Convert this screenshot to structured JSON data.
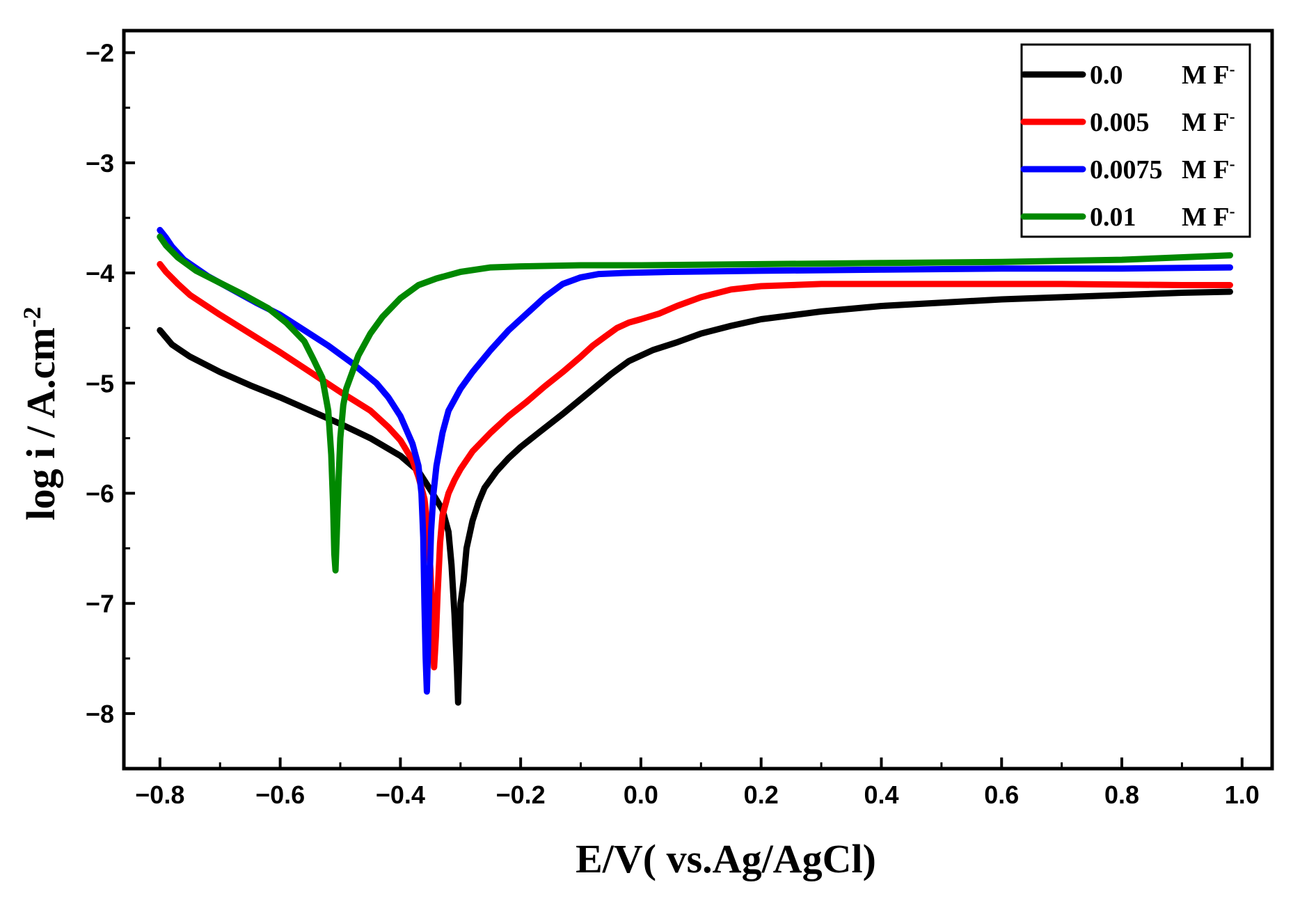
{
  "chart_data": {
    "type": "line",
    "title": "",
    "xlabel": "E/V( vs.Ag/AgCl)",
    "ylabel_main": "log i / A.cm",
    "ylabel_sup": "-2",
    "xlim": [
      -0.86,
      1.05
    ],
    "ylim": [
      -8.5,
      -1.8
    ],
    "xticks": [
      -0.8,
      -0.6,
      -0.4,
      -0.2,
      0.0,
      0.2,
      0.4,
      0.6,
      0.8,
      1.0
    ],
    "xtick_labels": [
      "−0.8",
      "−0.6",
      "−0.4",
      "−0.2",
      "0.0",
      "0.2",
      "0.4",
      "0.6",
      "0.8",
      "1.0"
    ],
    "yticks": [
      -2,
      -3,
      -4,
      -5,
      -6,
      -7,
      -8
    ],
    "ytick_labels": [
      "−2",
      "−3",
      "−4",
      "−5",
      "−6",
      "−7",
      "−8"
    ],
    "legend_position": "top-right",
    "series": [
      {
        "name": "0.0 M F-",
        "label_conc": "0.0",
        "label_unit": "M F",
        "label_sup": "-",
        "color": "#000000",
        "points": [
          [
            -0.8,
            -4.52
          ],
          [
            -0.78,
            -4.65
          ],
          [
            -0.75,
            -4.76
          ],
          [
            -0.7,
            -4.9
          ],
          [
            -0.65,
            -5.02
          ],
          [
            -0.6,
            -5.13
          ],
          [
            -0.55,
            -5.25
          ],
          [
            -0.5,
            -5.37
          ],
          [
            -0.45,
            -5.5
          ],
          [
            -0.4,
            -5.66
          ],
          [
            -0.37,
            -5.8
          ],
          [
            -0.35,
            -5.97
          ],
          [
            -0.33,
            -6.15
          ],
          [
            -0.32,
            -6.35
          ],
          [
            -0.315,
            -6.65
          ],
          [
            -0.31,
            -7.1
          ],
          [
            -0.306,
            -7.6
          ],
          [
            -0.304,
            -7.9
          ],
          [
            -0.302,
            -7.5
          ],
          [
            -0.3,
            -7.0
          ],
          [
            -0.295,
            -6.8
          ],
          [
            -0.29,
            -6.5
          ],
          [
            -0.28,
            -6.25
          ],
          [
            -0.27,
            -6.08
          ],
          [
            -0.26,
            -5.95
          ],
          [
            -0.24,
            -5.8
          ],
          [
            -0.22,
            -5.68
          ],
          [
            -0.2,
            -5.58
          ],
          [
            -0.17,
            -5.45
          ],
          [
            -0.13,
            -5.28
          ],
          [
            -0.09,
            -5.1
          ],
          [
            -0.05,
            -4.92
          ],
          [
            -0.02,
            -4.8
          ],
          [
            0.02,
            -4.7
          ],
          [
            0.06,
            -4.63
          ],
          [
            0.1,
            -4.55
          ],
          [
            0.15,
            -4.48
          ],
          [
            0.2,
            -4.42
          ],
          [
            0.3,
            -4.35
          ],
          [
            0.4,
            -4.3
          ],
          [
            0.5,
            -4.27
          ],
          [
            0.6,
            -4.24
          ],
          [
            0.7,
            -4.22
          ],
          [
            0.8,
            -4.2
          ],
          [
            0.9,
            -4.18
          ],
          [
            0.98,
            -4.17
          ]
        ]
      },
      {
        "name": "0.005 M F-",
        "label_conc": "0.005",
        "label_unit": "M F",
        "label_sup": "-",
        "color": "#ff0000",
        "points": [
          [
            -0.8,
            -3.92
          ],
          [
            -0.79,
            -3.99
          ],
          [
            -0.77,
            -4.1
          ],
          [
            -0.75,
            -4.2
          ],
          [
            -0.7,
            -4.38
          ],
          [
            -0.65,
            -4.55
          ],
          [
            -0.6,
            -4.72
          ],
          [
            -0.55,
            -4.9
          ],
          [
            -0.5,
            -5.08
          ],
          [
            -0.45,
            -5.25
          ],
          [
            -0.42,
            -5.4
          ],
          [
            -0.4,
            -5.52
          ],
          [
            -0.38,
            -5.7
          ],
          [
            -0.37,
            -5.85
          ],
          [
            -0.36,
            -6.05
          ],
          [
            -0.355,
            -6.3
          ],
          [
            -0.35,
            -6.7
          ],
          [
            -0.347,
            -7.15
          ],
          [
            -0.344,
            -7.58
          ],
          [
            -0.341,
            -7.3
          ],
          [
            -0.338,
            -6.9
          ],
          [
            -0.334,
            -6.45
          ],
          [
            -0.33,
            -6.2
          ],
          [
            -0.32,
            -6.0
          ],
          [
            -0.31,
            -5.88
          ],
          [
            -0.3,
            -5.78
          ],
          [
            -0.28,
            -5.62
          ],
          [
            -0.25,
            -5.45
          ],
          [
            -0.22,
            -5.3
          ],
          [
            -0.19,
            -5.17
          ],
          [
            -0.16,
            -5.03
          ],
          [
            -0.13,
            -4.9
          ],
          [
            -0.1,
            -4.76
          ],
          [
            -0.08,
            -4.66
          ],
          [
            -0.06,
            -4.58
          ],
          [
            -0.04,
            -4.5
          ],
          [
            -0.02,
            -4.45
          ],
          [
            0.0,
            -4.42
          ],
          [
            0.03,
            -4.37
          ],
          [
            0.06,
            -4.3
          ],
          [
            0.1,
            -4.22
          ],
          [
            0.15,
            -4.15
          ],
          [
            0.2,
            -4.12
          ],
          [
            0.3,
            -4.1
          ],
          [
            0.5,
            -4.1
          ],
          [
            0.7,
            -4.1
          ],
          [
            0.9,
            -4.11
          ],
          [
            0.98,
            -4.11
          ]
        ]
      },
      {
        "name": "0.0075 M F-",
        "label_conc": "0.0075",
        "label_unit": "M F",
        "label_sup": "-",
        "color": "#0000ff",
        "points": [
          [
            -0.8,
            -3.61
          ],
          [
            -0.79,
            -3.68
          ],
          [
            -0.78,
            -3.76
          ],
          [
            -0.76,
            -3.88
          ],
          [
            -0.72,
            -4.03
          ],
          [
            -0.68,
            -4.15
          ],
          [
            -0.64,
            -4.27
          ],
          [
            -0.6,
            -4.38
          ],
          [
            -0.56,
            -4.52
          ],
          [
            -0.52,
            -4.66
          ],
          [
            -0.48,
            -4.82
          ],
          [
            -0.44,
            -5.0
          ],
          [
            -0.42,
            -5.13
          ],
          [
            -0.4,
            -5.3
          ],
          [
            -0.38,
            -5.55
          ],
          [
            -0.37,
            -5.75
          ],
          [
            -0.365,
            -6.0
          ],
          [
            -0.362,
            -6.4
          ],
          [
            -0.36,
            -7.0
          ],
          [
            -0.358,
            -7.5
          ],
          [
            -0.356,
            -7.8
          ],
          [
            -0.354,
            -7.4
          ],
          [
            -0.352,
            -6.9
          ],
          [
            -0.349,
            -6.35
          ],
          [
            -0.345,
            -6.0
          ],
          [
            -0.34,
            -5.75
          ],
          [
            -0.33,
            -5.45
          ],
          [
            -0.32,
            -5.25
          ],
          [
            -0.3,
            -5.05
          ],
          [
            -0.28,
            -4.9
          ],
          [
            -0.25,
            -4.7
          ],
          [
            -0.22,
            -4.52
          ],
          [
            -0.19,
            -4.37
          ],
          [
            -0.16,
            -4.22
          ],
          [
            -0.13,
            -4.1
          ],
          [
            -0.1,
            -4.04
          ],
          [
            -0.07,
            -4.01
          ],
          [
            -0.03,
            -4.0
          ],
          [
            0.05,
            -3.99
          ],
          [
            0.2,
            -3.98
          ],
          [
            0.4,
            -3.97
          ],
          [
            0.6,
            -3.96
          ],
          [
            0.8,
            -3.96
          ],
          [
            0.98,
            -3.95
          ]
        ]
      },
      {
        "name": "0.01 M F-",
        "label_conc": "0.01",
        "label_unit": "M F",
        "label_sup": "-",
        "color": "#008800",
        "points": [
          [
            -0.8,
            -3.67
          ],
          [
            -0.79,
            -3.75
          ],
          [
            -0.77,
            -3.86
          ],
          [
            -0.74,
            -3.98
          ],
          [
            -0.7,
            -4.09
          ],
          [
            -0.66,
            -4.2
          ],
          [
            -0.62,
            -4.32
          ],
          [
            -0.59,
            -4.45
          ],
          [
            -0.56,
            -4.62
          ],
          [
            -0.545,
            -4.78
          ],
          [
            -0.53,
            -4.95
          ],
          [
            -0.52,
            -5.25
          ],
          [
            -0.515,
            -5.65
          ],
          [
            -0.512,
            -6.1
          ],
          [
            -0.51,
            -6.55
          ],
          [
            -0.508,
            -6.7
          ],
          [
            -0.506,
            -6.4
          ],
          [
            -0.503,
            -5.9
          ],
          [
            -0.5,
            -5.5
          ],
          [
            -0.495,
            -5.2
          ],
          [
            -0.49,
            -5.05
          ],
          [
            -0.48,
            -4.9
          ],
          [
            -0.47,
            -4.75
          ],
          [
            -0.45,
            -4.55
          ],
          [
            -0.43,
            -4.4
          ],
          [
            -0.4,
            -4.23
          ],
          [
            -0.37,
            -4.11
          ],
          [
            -0.34,
            -4.05
          ],
          [
            -0.3,
            -3.99
          ],
          [
            -0.25,
            -3.95
          ],
          [
            -0.2,
            -3.94
          ],
          [
            -0.1,
            -3.93
          ],
          [
            0.0,
            -3.93
          ],
          [
            0.2,
            -3.92
          ],
          [
            0.4,
            -3.91
          ],
          [
            0.6,
            -3.9
          ],
          [
            0.8,
            -3.88
          ],
          [
            0.98,
            -3.84
          ]
        ]
      }
    ]
  }
}
